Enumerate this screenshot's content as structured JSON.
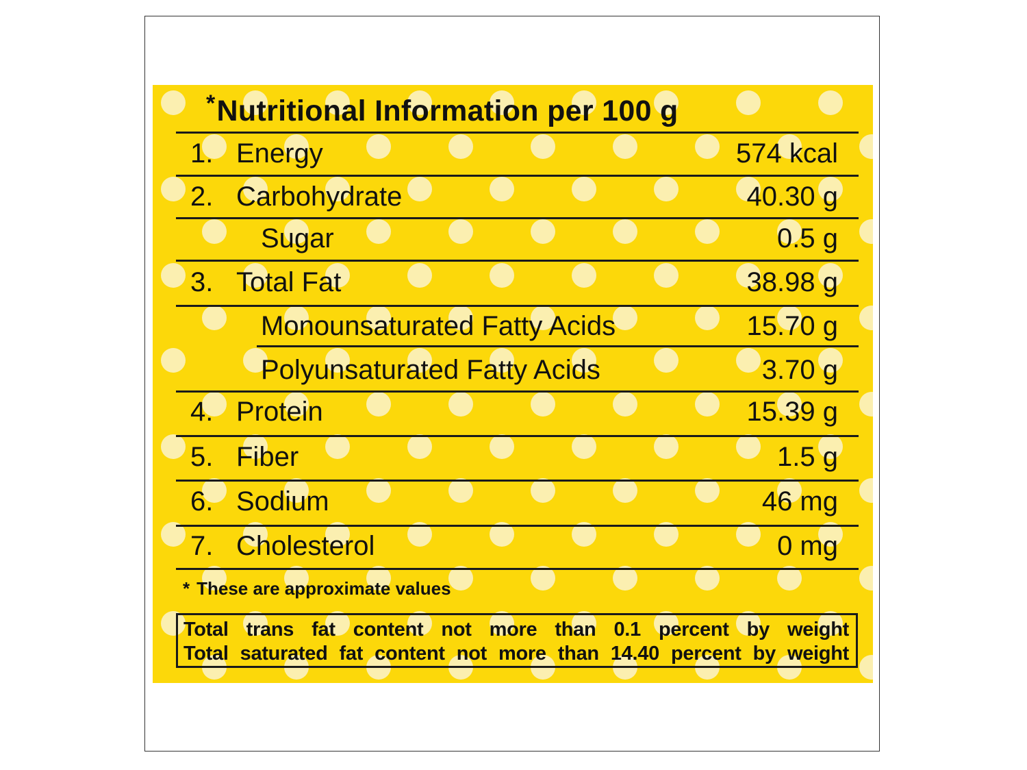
{
  "title": "Nutritional Information per 100 g",
  "title_marker": "*",
  "rows": [
    {
      "num": "1.",
      "label": "Energy",
      "value": "574 kcal"
    },
    {
      "num": "2.",
      "label": "Carbohydrate",
      "value": "40.30 g"
    },
    {
      "num": "",
      "label": "Sugar",
      "value": "0.5 g"
    },
    {
      "num": "3.",
      "label": "Total Fat",
      "value": "38.98 g"
    },
    {
      "num": "",
      "label": "Monounsaturated Fatty Acids",
      "value": "15.70 g"
    },
    {
      "num": "",
      "label": "Polyunsaturated Fatty Acids",
      "value": "3.70 g"
    },
    {
      "num": "4.",
      "label": "Protein",
      "value": "15.39 g"
    },
    {
      "num": "5.",
      "label": "Fiber",
      "value": "1.5 g"
    },
    {
      "num": "6.",
      "label": "Sodium",
      "value": "46 mg"
    },
    {
      "num": "7.",
      "label": "Cholesterol",
      "value": "0 mg"
    }
  ],
  "footnote": {
    "marker": "*",
    "text": "These are approximate values"
  },
  "box_lines": [
    "Total trans fat content not more than 0.1 percent by weight",
    "Total saturated fat content not more than 14.40 percent by weight"
  ],
  "colors": {
    "panel": "#fcd80a",
    "dot": "#fbefb0",
    "ink": "#111111"
  }
}
